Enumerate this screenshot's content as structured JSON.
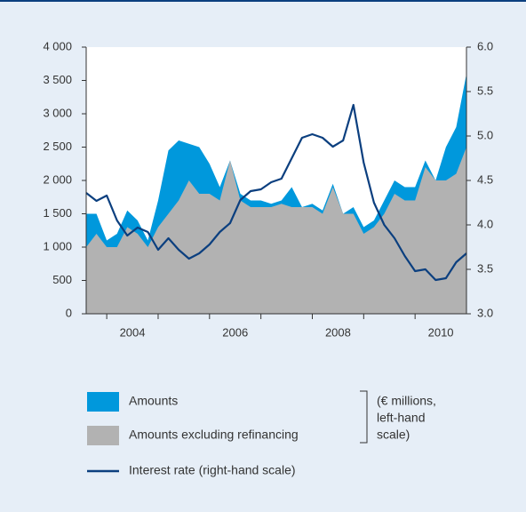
{
  "chart_data": {
    "type": "area",
    "x": [
      2003.6,
      2003.8,
      2004.0,
      2004.2,
      2004.4,
      2004.6,
      2004.8,
      2005.0,
      2005.2,
      2005.4,
      2005.6,
      2005.8,
      2006.0,
      2006.2,
      2006.4,
      2006.6,
      2006.8,
      2007.0,
      2007.2,
      2007.4,
      2007.6,
      2007.8,
      2008.0,
      2008.2,
      2008.4,
      2008.6,
      2008.8,
      2009.0,
      2009.2,
      2009.4,
      2009.6,
      2009.8,
      2010.0,
      2010.2,
      2010.4,
      2010.6,
      2010.8,
      2011.0
    ],
    "series": [
      {
        "name": "Amounts",
        "type": "area",
        "color": "#0098dc",
        "values": [
          1500,
          1500,
          1100,
          1200,
          1550,
          1400,
          1100,
          1700,
          2450,
          2600,
          2550,
          2500,
          2250,
          1900,
          2300,
          1800,
          1700,
          1700,
          1650,
          1700,
          1900,
          1600,
          1650,
          1550,
          1950,
          1500,
          1600,
          1300,
          1400,
          1700,
          2000,
          1900,
          1900,
          2300,
          2000,
          2500,
          2800,
          3600
        ]
      },
      {
        "name": "Amounts excluding refinancing",
        "type": "area",
        "color": "#b2b2b2",
        "values": [
          1000,
          1200,
          1000,
          1000,
          1300,
          1200,
          1000,
          1300,
          1500,
          1700,
          2000,
          1800,
          1800,
          1700,
          2300,
          1700,
          1600,
          1600,
          1600,
          1650,
          1600,
          1600,
          1600,
          1500,
          1900,
          1500,
          1500,
          1200,
          1300,
          1500,
          1800,
          1700,
          1700,
          2200,
          2000,
          2000,
          2100,
          2500
        ]
      },
      {
        "name": "Interest rate (right-hand scale)",
        "type": "line",
        "axis": "y2",
        "color": "#0b3f7f",
        "values": [
          4.36,
          4.27,
          4.33,
          4.05,
          3.88,
          3.97,
          3.92,
          3.72,
          3.85,
          3.72,
          3.62,
          3.68,
          3.78,
          3.92,
          4.02,
          4.28,
          4.38,
          4.4,
          4.48,
          4.52,
          4.75,
          4.98,
          5.02,
          4.98,
          4.88,
          4.95,
          5.35,
          4.7,
          4.25,
          4.0,
          3.85,
          3.65,
          3.48,
          3.5,
          3.38,
          3.4,
          3.58,
          3.68
        ]
      }
    ],
    "xlim": [
      2003.6,
      2011.0
    ],
    "xticks": [
      2004,
      2005,
      2006,
      2007,
      2008,
      2009,
      2010
    ],
    "xlabels": [
      2004,
      2006,
      2008,
      2010
    ],
    "ylim": [
      0,
      4000
    ],
    "yticks": [
      0,
      500,
      {
        "value": 1000,
        "label": "1 000"
      },
      {
        "value": 1500,
        "label": "1 500"
      },
      {
        "value": 2000,
        "label": "2 000"
      },
      {
        "value": 2500,
        "label": "2 500"
      },
      {
        "value": 3000,
        "label": "3 000"
      },
      {
        "value": 3500,
        "label": "3 500"
      },
      {
        "value": 4000,
        "label": "4 000"
      }
    ],
    "y2lim": [
      3.0,
      6.0
    ],
    "y2ticks": [
      {
        "value": 3,
        "label": "3.0"
      },
      3.5,
      {
        "value": 4,
        "label": "4.0"
      },
      4.5,
      {
        "value": 5,
        "label": "5.0"
      },
      5.5,
      {
        "value": 6,
        "label": "6.0"
      }
    ],
    "bracket_note": [
      "(€ millions,",
      "left-hand",
      "scale)"
    ]
  }
}
